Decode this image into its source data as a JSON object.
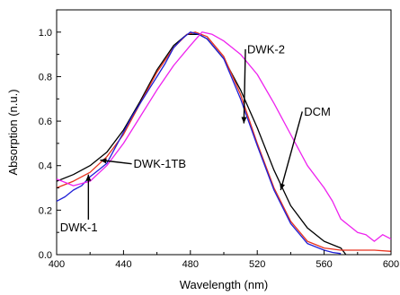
{
  "chart_data": {
    "type": "line",
    "xlabel": "Wavelength (nm)",
    "ylabel": "Absorption (n.u.)",
    "xlim": [
      400,
      600
    ],
    "ylim": [
      0.0,
      1.1
    ],
    "x_ticks": [
      "400",
      "440",
      "480",
      "520",
      "560",
      "600"
    ],
    "y_ticks": [
      "0.0",
      "0.2",
      "0.4",
      "0.6",
      "0.8",
      "1.0"
    ],
    "grid": false,
    "legend": "none",
    "series": [
      {
        "name": "DCM",
        "color": "#000000",
        "points": [
          [
            400,
            0.33
          ],
          [
            410,
            0.36
          ],
          [
            420,
            0.4
          ],
          [
            430,
            0.46
          ],
          [
            440,
            0.56
          ],
          [
            450,
            0.69
          ],
          [
            460,
            0.83
          ],
          [
            470,
            0.94
          ],
          [
            478,
            0.99
          ],
          [
            485,
            0.99
          ],
          [
            490,
            0.97
          ],
          [
            500,
            0.88
          ],
          [
            510,
            0.74
          ],
          [
            520,
            0.57
          ],
          [
            530,
            0.38
          ],
          [
            540,
            0.22
          ],
          [
            550,
            0.12
          ],
          [
            560,
            0.06
          ],
          [
            570,
            0.03
          ],
          [
            573,
            0.0
          ]
        ]
      },
      {
        "name": "DWK-1",
        "color": "#e8321e",
        "points": [
          [
            400,
            0.3
          ],
          [
            410,
            0.33
          ],
          [
            420,
            0.37
          ],
          [
            430,
            0.44
          ],
          [
            440,
            0.54
          ],
          [
            450,
            0.68
          ],
          [
            460,
            0.82
          ],
          [
            470,
            0.93
          ],
          [
            478,
            0.99
          ],
          [
            483,
            1.0
          ],
          [
            490,
            0.98
          ],
          [
            500,
            0.89
          ],
          [
            510,
            0.72
          ],
          [
            520,
            0.5
          ],
          [
            530,
            0.3
          ],
          [
            540,
            0.15
          ],
          [
            550,
            0.06
          ],
          [
            560,
            0.03
          ],
          [
            570,
            0.02
          ],
          [
            580,
            0.02
          ],
          [
            590,
            0.02
          ],
          [
            600,
            0.015
          ]
        ]
      },
      {
        "name": "DWK-1TB",
        "color": "#1f1fd6",
        "points": [
          [
            400,
            0.24
          ],
          [
            405,
            0.26
          ],
          [
            410,
            0.29
          ],
          [
            415,
            0.31
          ],
          [
            420,
            0.35
          ],
          [
            425,
            0.38
          ],
          [
            430,
            0.41
          ],
          [
            435,
            0.48
          ],
          [
            440,
            0.55
          ],
          [
            445,
            0.62
          ],
          [
            450,
            0.68
          ],
          [
            455,
            0.74
          ],
          [
            460,
            0.8
          ],
          [
            465,
            0.86
          ],
          [
            470,
            0.93
          ],
          [
            475,
            0.97
          ],
          [
            480,
            1.0
          ],
          [
            485,
            0.99
          ],
          [
            490,
            0.97
          ],
          [
            500,
            0.88
          ],
          [
            510,
            0.7
          ],
          [
            520,
            0.49
          ],
          [
            530,
            0.29
          ],
          [
            540,
            0.14
          ],
          [
            550,
            0.05
          ],
          [
            560,
            0.02
          ],
          [
            565,
            0.01
          ],
          [
            570,
            0.005
          ]
        ]
      },
      {
        "name": "DWK-2",
        "color": "#ee22ee",
        "points": [
          [
            400,
            0.34
          ],
          [
            410,
            0.31
          ],
          [
            420,
            0.33
          ],
          [
            430,
            0.4
          ],
          [
            440,
            0.5
          ],
          [
            450,
            0.62
          ],
          [
            460,
            0.74
          ],
          [
            470,
            0.85
          ],
          [
            480,
            0.94
          ],
          [
            487,
            1.0
          ],
          [
            493,
            0.99
          ],
          [
            500,
            0.96
          ],
          [
            510,
            0.9
          ],
          [
            520,
            0.81
          ],
          [
            530,
            0.68
          ],
          [
            540,
            0.54
          ],
          [
            550,
            0.4
          ],
          [
            560,
            0.3
          ],
          [
            565,
            0.24
          ],
          [
            570,
            0.16
          ],
          [
            575,
            0.13
          ],
          [
            580,
            0.1
          ],
          [
            585,
            0.09
          ],
          [
            590,
            0.06
          ],
          [
            595,
            0.09
          ],
          [
            600,
            0.07
          ]
        ]
      }
    ],
    "annotations": [
      {
        "text": "DWK-2",
        "tx": 514,
        "ty": 0.905,
        "ax": 512,
        "ay": 0.59
      },
      {
        "text": "DCM",
        "tx": 548,
        "ty": 0.625,
        "ax": 534,
        "ay": 0.29
      },
      {
        "text": "DWK-1TB",
        "tx": 446,
        "ty": 0.39,
        "ax": 426,
        "ay": 0.425
      },
      {
        "text": "DWK-1",
        "tx": 402,
        "ty": 0.105,
        "ax": 419,
        "ay": 0.36
      }
    ]
  }
}
